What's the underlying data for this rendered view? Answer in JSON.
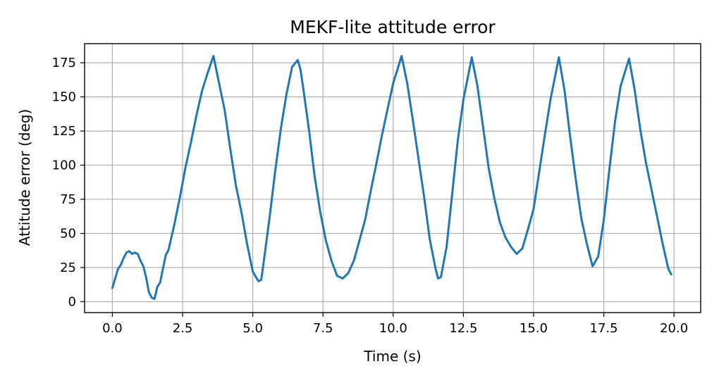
{
  "chart_data": {
    "type": "line",
    "title": "MEKF-lite attitude error",
    "xlabel": "Time (s)",
    "ylabel": "Attitude error (deg)",
    "xlim": [
      -0.99,
      20.95
    ],
    "ylim": [
      -8,
      189
    ],
    "x_ticks": [
      0.0,
      2.5,
      5.0,
      7.5,
      10.0,
      12.5,
      15.0,
      17.5,
      20.0
    ],
    "x_tick_labels": [
      "0.0",
      "2.5",
      "5.0",
      "7.5",
      "10.0",
      "12.5",
      "15.0",
      "17.5",
      "20.0"
    ],
    "y_ticks": [
      0,
      25,
      50,
      75,
      100,
      125,
      150,
      175
    ],
    "y_tick_labels": [
      "0",
      "25",
      "50",
      "75",
      "100",
      "125",
      "150",
      "175"
    ],
    "grid": true,
    "series": [
      {
        "color": "#1f77b4",
        "x": [
          0.0,
          0.1,
          0.2,
          0.3,
          0.4,
          0.5,
          0.6,
          0.7,
          0.8,
          0.9,
          1.0,
          1.1,
          1.2,
          1.3,
          1.4,
          1.5,
          1.6,
          1.7,
          1.8,
          1.9,
          2.0,
          2.2,
          2.4,
          2.6,
          2.8,
          3.0,
          3.2,
          3.4,
          3.6,
          3.8,
          4.0,
          4.2,
          4.4,
          4.6,
          4.8,
          5.0,
          5.2,
          5.3,
          5.4,
          5.6,
          5.8,
          6.0,
          6.2,
          6.4,
          6.6,
          6.7,
          6.8,
          7.0,
          7.2,
          7.4,
          7.6,
          7.8,
          8.0,
          8.2,
          8.4,
          8.6,
          8.8,
          9.0,
          9.2,
          9.4,
          9.6,
          9.8,
          10.0,
          10.3,
          10.5,
          10.7,
          10.9,
          11.1,
          11.3,
          11.5,
          11.6,
          11.7,
          11.9,
          12.1,
          12.3,
          12.5,
          12.8,
          13.0,
          13.2,
          13.4,
          13.6,
          13.8,
          14.0,
          14.2,
          14.4,
          14.6,
          14.8,
          15.0,
          15.2,
          15.4,
          15.6,
          15.9,
          16.1,
          16.3,
          16.5,
          16.7,
          16.9,
          17.1,
          17.3,
          17.5,
          17.7,
          17.9,
          18.1,
          18.4,
          18.6,
          18.8,
          19.0,
          19.2,
          19.4,
          19.6,
          19.8,
          19.9
        ],
        "y": [
          10,
          17,
          24,
          27,
          32,
          36,
          37,
          35,
          36,
          35,
          30,
          26,
          18,
          7,
          3,
          2,
          11,
          14,
          24,
          34,
          38,
          56,
          76,
          98,
          117,
          137,
          155,
          168,
          180,
          160,
          140,
          112,
          85,
          65,
          42,
          22,
          15,
          16,
          31,
          62,
          96,
          127,
          152,
          172,
          177,
          170,
          156,
          126,
          92,
          66,
          45,
          30,
          19,
          17,
          21,
          30,
          45,
          60,
          81,
          101,
          122,
          141,
          160,
          180,
          160,
          133,
          105,
          77,
          46,
          25,
          17,
          18,
          40,
          79,
          118,
          148,
          179,
          158,
          128,
          98,
          76,
          58,
          47,
          40,
          35,
          39,
          53,
          68,
          95,
          122,
          148,
          179,
          155,
          121,
          90,
          61,
          42,
          26,
          33,
          60,
          97,
          132,
          158,
          178,
          155,
          126,
          102,
          82,
          62,
          42,
          24,
          20
        ]
      }
    ]
  }
}
